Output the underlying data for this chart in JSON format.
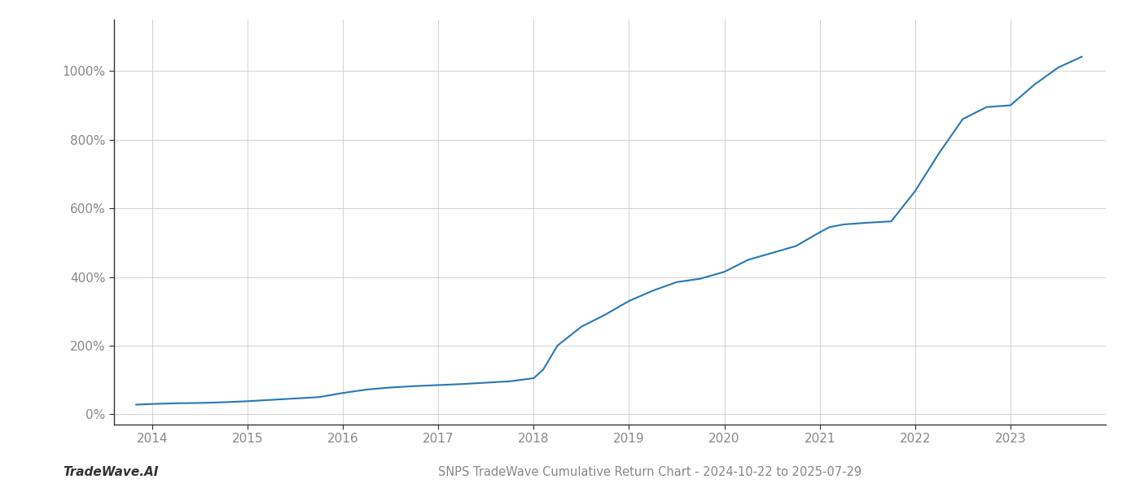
{
  "title": "SNPS TradeWave Cumulative Return Chart - 2024-10-22 to 2025-07-29",
  "watermark": "TradeWave.AI",
  "line_color": "#2878b5",
  "background_color": "#ffffff",
  "grid_color": "#cccccc",
  "x_years": [
    2014,
    2015,
    2016,
    2017,
    2018,
    2019,
    2020,
    2021,
    2022,
    2023
  ],
  "y_ticks": [
    0,
    200,
    400,
    600,
    800,
    1000
  ],
  "x_data": [
    2013.83,
    2014.0,
    2014.25,
    2014.5,
    2014.75,
    2015.0,
    2015.25,
    2015.5,
    2015.75,
    2016.0,
    2016.25,
    2016.5,
    2016.75,
    2017.0,
    2017.25,
    2017.5,
    2017.75,
    2018.0,
    2018.1,
    2018.25,
    2018.5,
    2018.75,
    2019.0,
    2019.25,
    2019.5,
    2019.75,
    2020.0,
    2020.25,
    2020.5,
    2020.75,
    2021.0,
    2021.1,
    2021.25,
    2021.5,
    2021.75,
    2022.0,
    2022.25,
    2022.5,
    2022.75,
    2023.0,
    2023.25,
    2023.5,
    2023.75
  ],
  "y_data": [
    28,
    30,
    32,
    33,
    35,
    38,
    42,
    46,
    50,
    62,
    72,
    78,
    82,
    85,
    88,
    92,
    96,
    105,
    130,
    200,
    255,
    290,
    330,
    360,
    385,
    395,
    415,
    450,
    470,
    490,
    530,
    545,
    553,
    558,
    562,
    650,
    760,
    860,
    895,
    900,
    960,
    1010,
    1042
  ],
  "ylim": [
    -30,
    1150
  ],
  "xlim": [
    2013.6,
    2024.0
  ],
  "figsize": [
    14,
    6
  ],
  "dpi": 100,
  "line_width": 1.5,
  "title_fontsize": 10.5,
  "watermark_fontsize": 11,
  "tick_fontsize": 11,
  "axis_color": "#888888",
  "spine_color": "#333333",
  "watermark_color": "#333333"
}
